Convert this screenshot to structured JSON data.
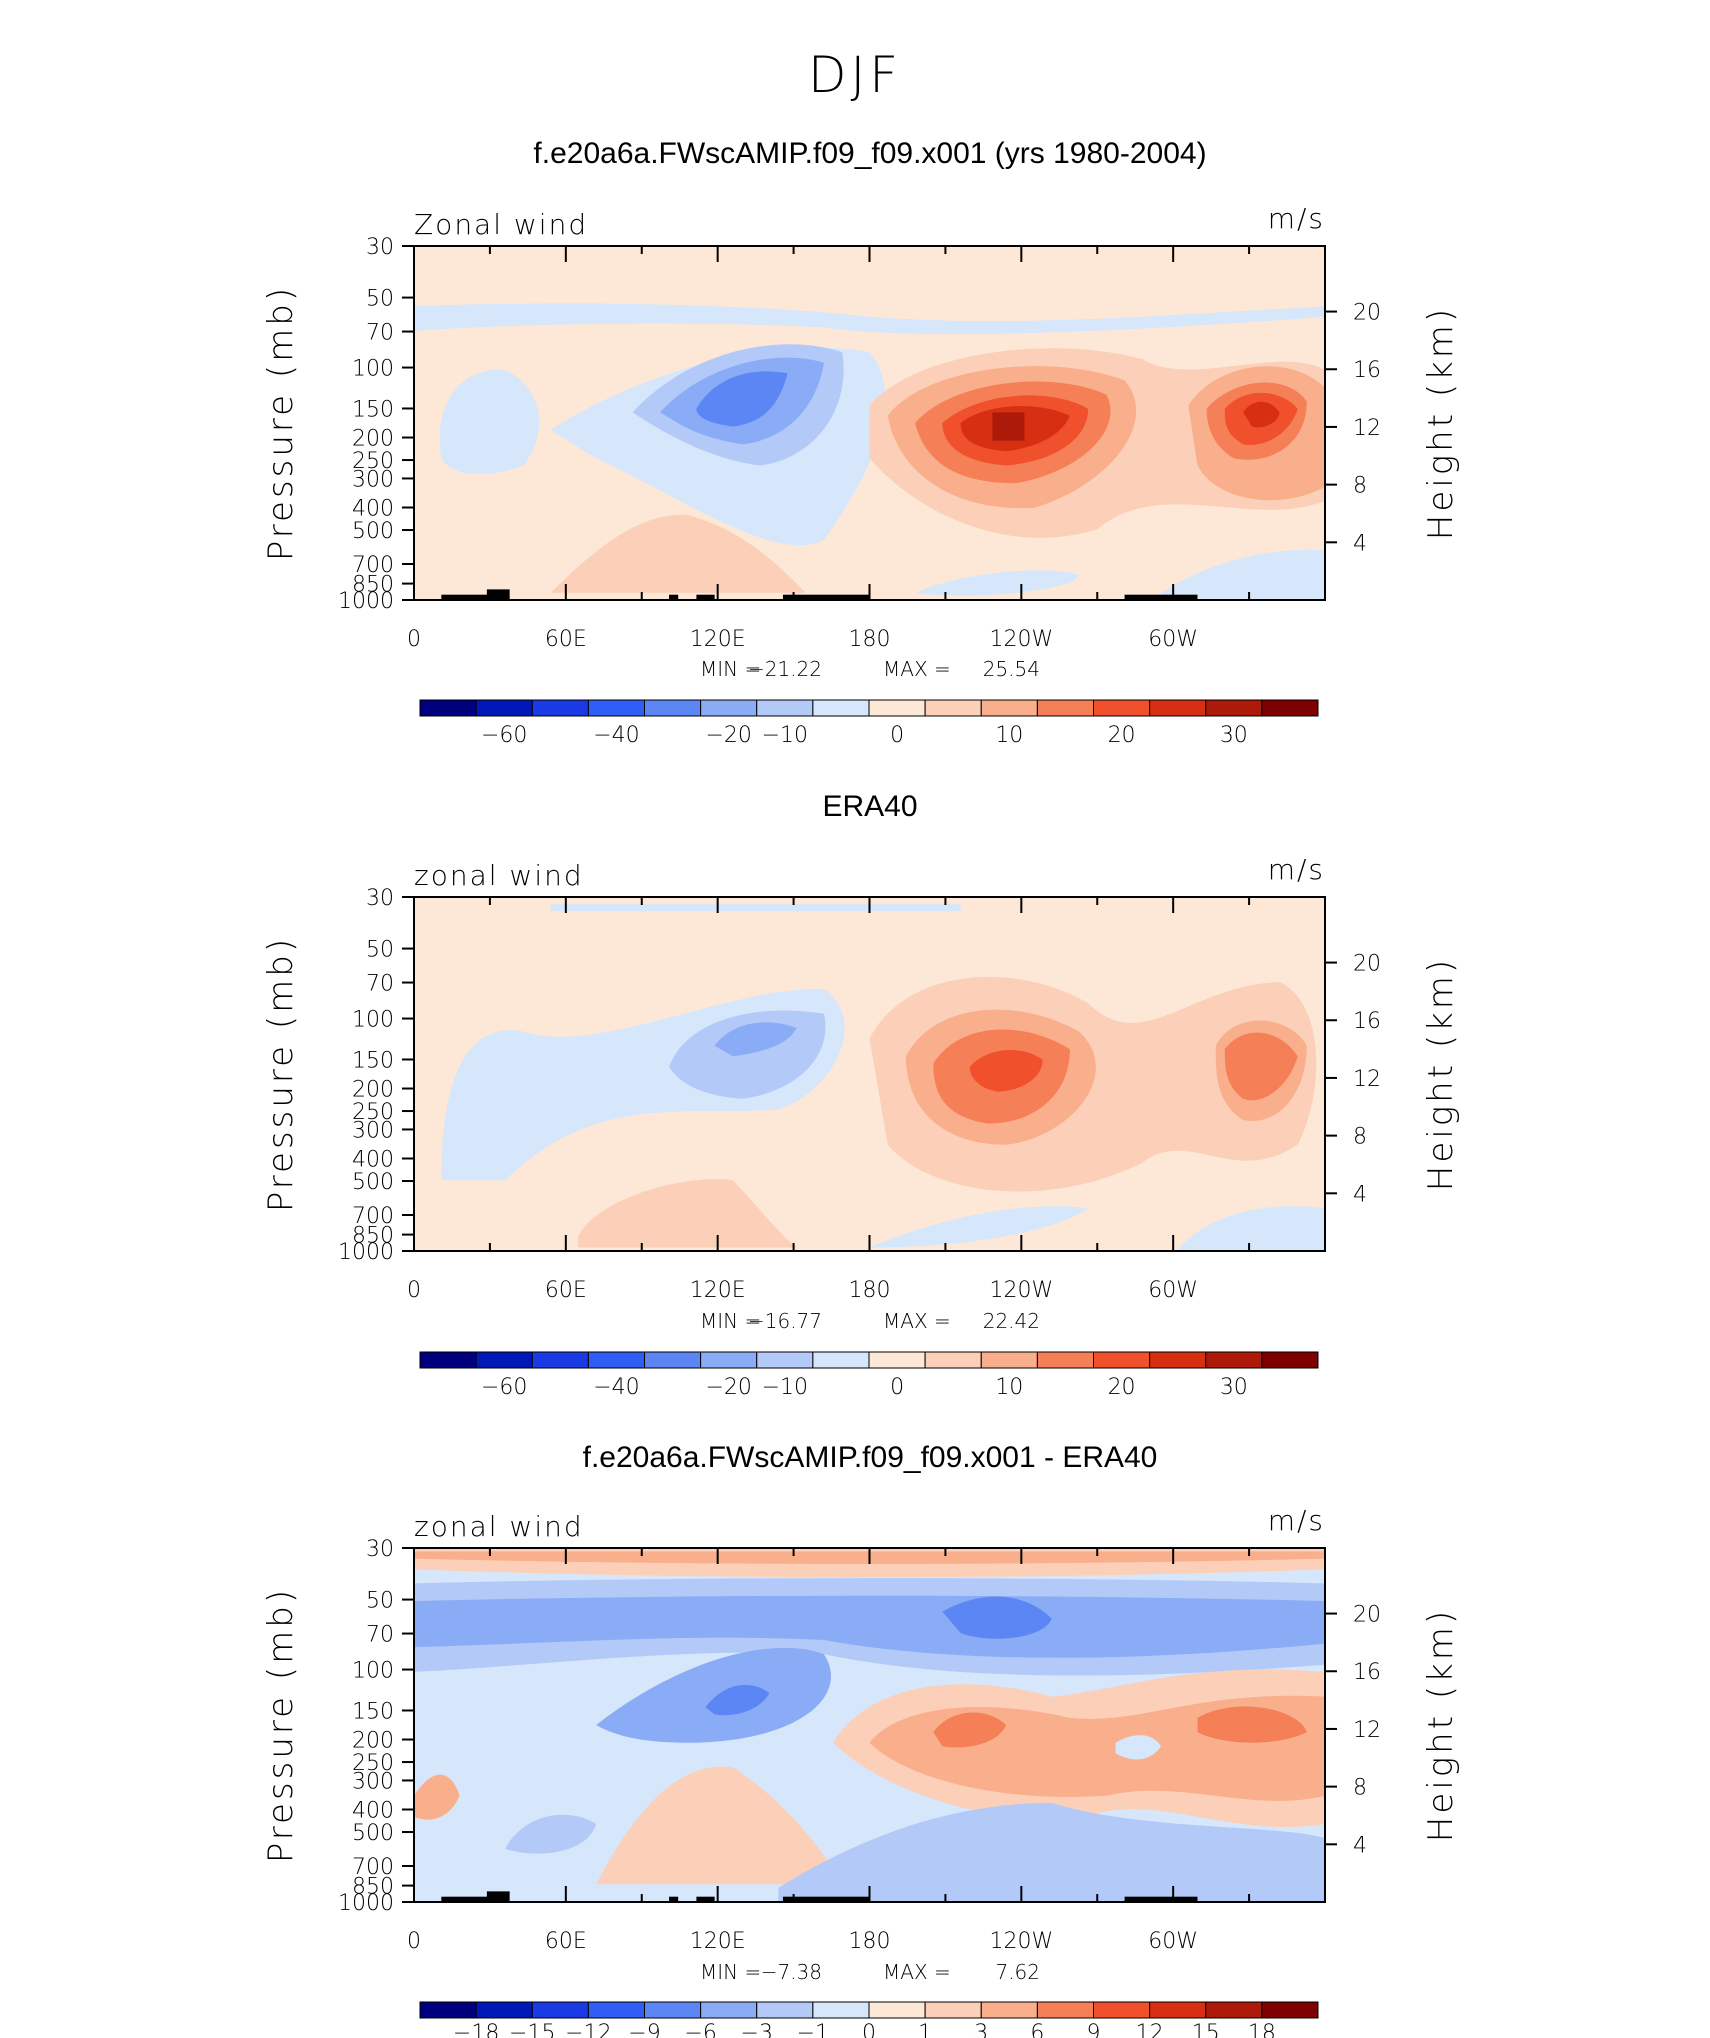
{
  "figure": {
    "title": "DJF"
  },
  "palettes": {
    "main": [
      "#00007f",
      "#0018b8",
      "#1a3ae6",
      "#2e5ef5",
      "#5b86f3",
      "#8aabf5",
      "#b3c9f7",
      "#d6e6fb",
      "#fde8d7",
      "#fcd0b8",
      "#f9ae8c",
      "#f57f57",
      "#f0502b",
      "#d72f12",
      "#ad1a0a",
      "#7f0000"
    ],
    "diff": [
      "#00007f",
      "#0018b8",
      "#1a3ae6",
      "#2e5ef5",
      "#5b86f3",
      "#8aabf5",
      "#b3c9f7",
      "#d6e6fb",
      "#fde8d7",
      "#fcd0b8",
      "#f9ae8c",
      "#f57f57",
      "#f0502b",
      "#d72f12",
      "#ad1a0a",
      "#7f0000"
    ]
  },
  "panels": [
    {
      "title": "f.e20a6a.FWscAMIP.f09_f09.x001 (yrs 1980-2004)",
      "label_left": "Zonal wind",
      "label_right": "m/s",
      "ylabel_left": "Pressure (mb)",
      "ylabel_right": "Height (km)",
      "pressure_ticks": [
        "30",
        "50",
        "70",
        "100",
        "150",
        "200",
        "250",
        "300",
        "400",
        "500",
        "700",
        "850",
        "1000"
      ],
      "height_ticks": [
        "20",
        "16",
        "12",
        "8",
        "4"
      ],
      "lon_ticks": [
        "0",
        "60E",
        "120E",
        "180",
        "120W",
        "60W"
      ],
      "stats": {
        "min_label": "MIN =",
        "min": "−21.22",
        "max_label": "MAX =",
        "max": "25.54"
      },
      "colorbar_labels": [
        "−60",
        "−40",
        "−20",
        "−10",
        "0",
        "10",
        "20",
        "30"
      ],
      "palette": "main"
    },
    {
      "title": "ERA40",
      "label_left": "zonal wind",
      "label_right": "m/s",
      "ylabel_left": "Pressure (mb)",
      "ylabel_right": "Height (km)",
      "pressure_ticks": [
        "30",
        "50",
        "70",
        "100",
        "150",
        "200",
        "250",
        "300",
        "400",
        "500",
        "700",
        "850",
        "1000"
      ],
      "height_ticks": [
        "20",
        "16",
        "12",
        "8",
        "4"
      ],
      "lon_ticks": [
        "0",
        "60E",
        "120E",
        "180",
        "120W",
        "60W"
      ],
      "stats": {
        "min_label": "MIN =",
        "min": "−16.77",
        "max_label": "MAX =",
        "max": "22.42"
      },
      "colorbar_labels": [
        "−60",
        "−40",
        "−20",
        "−10",
        "0",
        "10",
        "20",
        "30"
      ],
      "palette": "main"
    },
    {
      "title": "f.e20a6a.FWscAMIP.f09_f09.x001 - ERA40",
      "label_left": "zonal wind",
      "label_right": "m/s",
      "ylabel_left": "Pressure (mb)",
      "ylabel_right": "Height (km)",
      "pressure_ticks": [
        "30",
        "50",
        "70",
        "100",
        "150",
        "200",
        "250",
        "300",
        "400",
        "500",
        "700",
        "850",
        "1000"
      ],
      "height_ticks": [
        "20",
        "16",
        "12",
        "8",
        "4"
      ],
      "lon_ticks": [
        "0",
        "60E",
        "120E",
        "180",
        "120W",
        "60W"
      ],
      "stats": {
        "min_label": "MIN =",
        "min": "−7.38",
        "max_label": "MAX =",
        "max": "7.62"
      },
      "colorbar_labels": [
        "−18",
        "−15",
        "−12",
        "−9",
        "−6",
        "−3",
        "−1",
        "0",
        "1",
        "3",
        "6",
        "9",
        "12",
        "15",
        "18"
      ],
      "palette": "diff"
    }
  ],
  "chart_data": [
    {
      "type": "heatmap",
      "title": "f.e20a6a.FWscAMIP.f09_f09.x001 (yrs 1980-2004)",
      "variable": "Zonal wind",
      "units": "m/s",
      "x": "longitude",
      "x_ticks": [
        "0",
        "60E",
        "120E",
        "180",
        "120W",
        "60W"
      ],
      "y": "pressure (mb)",
      "y_ticks": [
        30,
        50,
        70,
        100,
        150,
        200,
        250,
        300,
        400,
        500,
        700,
        850,
        1000
      ],
      "y_right": "height (km)",
      "y_right_ticks": [
        20,
        16,
        12,
        8,
        4
      ],
      "min": -21.22,
      "max": 25.54,
      "levels": [
        -60,
        -40,
        -20,
        -10,
        0,
        10,
        20,
        30
      ],
      "features": [
        {
          "lon": 120,
          "p": 130,
          "value": -20
        },
        {
          "lon": 245,
          "p": 190,
          "value": 25
        },
        {
          "lon": 330,
          "p": 180,
          "value": 20
        }
      ]
    },
    {
      "type": "heatmap",
      "title": "ERA40",
      "variable": "zonal wind",
      "units": "m/s",
      "x": "longitude",
      "x_ticks": [
        "0",
        "60E",
        "120E",
        "180",
        "120W",
        "60W"
      ],
      "y": "pressure (mb)",
      "y_ticks": [
        30,
        50,
        70,
        100,
        150,
        200,
        250,
        300,
        400,
        500,
        700,
        850,
        1000
      ],
      "y_right": "height (km)",
      "y_right_ticks": [
        20,
        16,
        12,
        8,
        4
      ],
      "min": -16.77,
      "max": 22.42,
      "levels": [
        -60,
        -40,
        -20,
        -10,
        0,
        10,
        20,
        30
      ],
      "features": [
        {
          "lon": 125,
          "p": 130,
          "value": -15
        },
        {
          "lon": 230,
          "p": 170,
          "value": 22
        },
        {
          "lon": 330,
          "p": 165,
          "value": 18
        }
      ]
    },
    {
      "type": "heatmap",
      "title": "f.e20a6a.FWscAMIP.f09_f09.x001 - ERA40",
      "variable": "zonal wind",
      "units": "m/s",
      "x": "longitude",
      "x_ticks": [
        "0",
        "60E",
        "120E",
        "180",
        "120W",
        "60W"
      ],
      "y": "pressure (mb)",
      "y_ticks": [
        30,
        50,
        70,
        100,
        150,
        200,
        250,
        300,
        400,
        500,
        700,
        850,
        1000
      ],
      "y_right": "height (km)",
      "y_right_ticks": [
        20,
        16,
        12,
        8,
        4
      ],
      "min": -7.38,
      "max": 7.62,
      "levels": [
        -18,
        -15,
        -12,
        -9,
        -6,
        -3,
        -1,
        0,
        1,
        3,
        6,
        9,
        12,
        15,
        18
      ],
      "features": [
        {
          "lon": 210,
          "p": 65,
          "value": -7
        },
        {
          "lon": 130,
          "p": 150,
          "value": -6
        },
        {
          "lon": 205,
          "p": 200,
          "value": 6
        },
        {
          "lon": 335,
          "p": 200,
          "value": 7
        }
      ]
    }
  ]
}
